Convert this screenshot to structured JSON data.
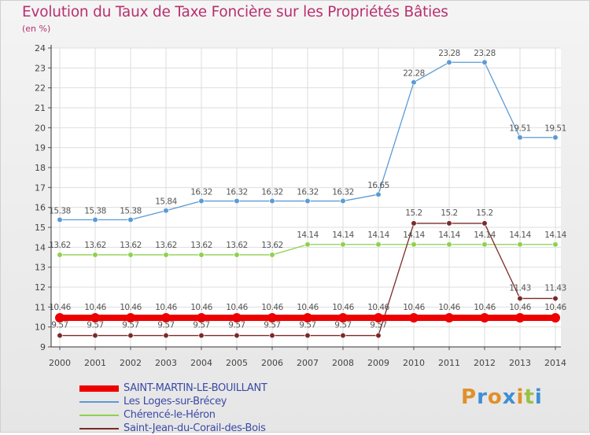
{
  "header": {
    "title": "Evolution du Taux de Taxe Foncière sur les Propriétés Bâties",
    "subtitle": "(en %)"
  },
  "logo": {
    "text": "Proxiti",
    "colors": [
      "#e0902a",
      "#3d8fd6",
      "#e0902a",
      "#3d8fd6",
      "#e0902a",
      "#9ac144",
      "#3d8fd6"
    ]
  },
  "chart_data": {
    "type": "line",
    "x": [
      "2000",
      "2001",
      "2002",
      "2003",
      "2004",
      "2005",
      "2006",
      "2007",
      "2008",
      "2009",
      "2010",
      "2011",
      "2012",
      "2013",
      "2014"
    ],
    "ylim": [
      9,
      24
    ],
    "y_ticks": [
      "9",
      "10",
      "11",
      "12",
      "13",
      "14",
      "15",
      "16",
      "17",
      "18",
      "19",
      "20",
      "21",
      "22",
      "23",
      "24"
    ],
    "grid": true,
    "series": [
      {
        "name": "SAINT-MARTIN-LE-BOUILLANT",
        "color": "#ee0000",
        "values": [
          10.46,
          10.46,
          10.46,
          10.46,
          10.46,
          10.46,
          10.46,
          10.46,
          10.46,
          10.46,
          10.46,
          10.46,
          10.46,
          10.46,
          10.46
        ],
        "labels": [
          "10.46",
          "10.46",
          "10.46",
          "10.46",
          "10.46",
          "10.46",
          "10.46",
          "10.46",
          "10.46",
          "10.46",
          "10.46",
          "10.46",
          "10.46",
          "10.46",
          "10.46"
        ]
      },
      {
        "name": "Les Loges-sur-Brécey",
        "color": "#5b9bd5",
        "values": [
          15.38,
          15.38,
          15.38,
          15.84,
          16.32,
          16.32,
          16.32,
          16.32,
          16.32,
          16.65,
          22.28,
          23.28,
          23.28,
          19.51,
          19.51
        ],
        "labels": [
          "15.38",
          "15.38",
          "15.38",
          "15.84",
          "16.32",
          "16.32",
          "16.32",
          "16.32",
          "16.32",
          "16.65",
          "22.28",
          "23.28",
          "23.28",
          "19.51",
          "19.51"
        ]
      },
      {
        "name": "Chérencé-le-Héron",
        "color": "#8fd14f",
        "values": [
          13.62,
          13.62,
          13.62,
          13.62,
          13.62,
          13.62,
          13.62,
          14.14,
          14.14,
          14.14,
          14.14,
          14.14,
          14.14,
          14.14,
          14.14
        ],
        "labels": [
          "13.62",
          "13.62",
          "13.62",
          "13.62",
          "13.62",
          "13.62",
          "13.62",
          "14.14",
          "14.14",
          "14.14",
          "14.14",
          "14.14",
          "14.14",
          "14.14",
          "14.14"
        ]
      },
      {
        "name": "Saint-Jean-du-Corail-des-Bois",
        "color": "#7b2a2a",
        "values": [
          9.57,
          9.57,
          9.57,
          9.57,
          9.57,
          9.57,
          9.57,
          9.57,
          9.57,
          9.57,
          15.2,
          15.2,
          15.2,
          11.43,
          11.43
        ],
        "labels": [
          "9.57",
          "9.57",
          "9.57",
          "9.57",
          "9.57",
          "9.57",
          "9.57",
          "9.57",
          "9.57",
          "9.57",
          "15.2",
          "15.2",
          "15.2",
          "11.43",
          "11.43"
        ]
      }
    ]
  }
}
